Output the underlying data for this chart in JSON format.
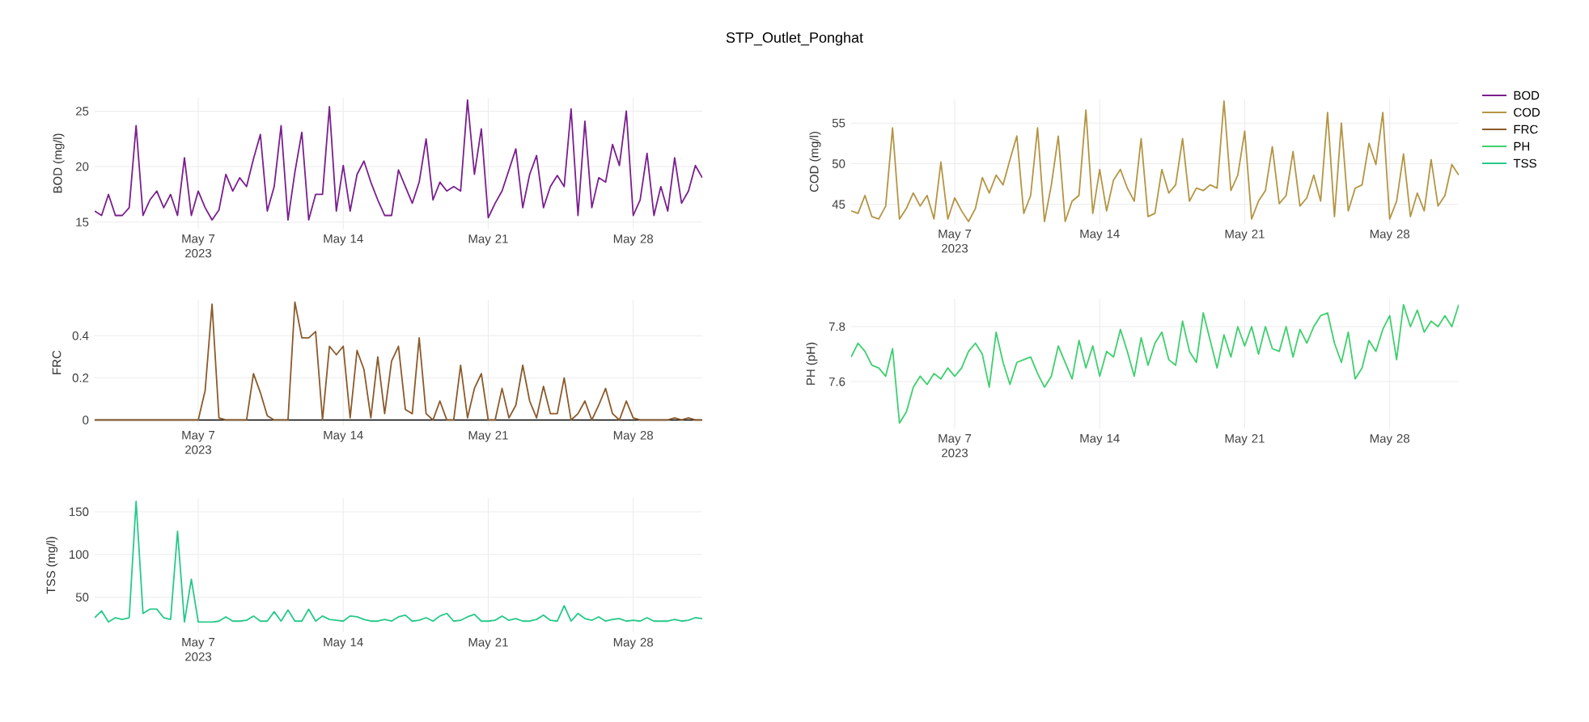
{
  "chart_data": [
    {
      "type": "line",
      "ylabel": "BOD (mg/l)",
      "grid": true,
      "legend": "top right",
      "x": [
        "2023-05-02T00:00",
        "2023-05-02T08:00",
        "2023-05-02T16:00",
        "2023-05-03T00:00",
        "2023-05-03T08:00",
        "2023-05-03T16:00",
        "2023-05-04T00:00",
        "2023-05-04T08:00",
        "2023-05-04T16:00",
        "2023-05-05T00:00",
        "2023-05-05T08:00",
        "2023-05-05T16:00",
        "2023-05-06T00:00",
        "2023-05-06T08:00",
        "2023-05-06T16:00",
        "2023-05-07T00:00",
        "2023-05-07T08:00",
        "2023-05-07T16:00",
        "2023-05-08T00:00",
        "2023-05-08T08:00",
        "2023-05-08T16:00",
        "2023-05-09T00:00",
        "2023-05-09T08:00",
        "2023-05-09T16:00",
        "2023-05-10T00:00",
        "2023-05-10T08:00",
        "2023-05-10T16:00",
        "2023-05-11T00:00",
        "2023-05-11T08:00",
        "2023-05-11T16:00",
        "2023-05-12T00:00",
        "2023-05-12T08:00",
        "2023-05-12T16:00",
        "2023-05-13T00:00",
        "2023-05-13T08:00",
        "2023-05-13T16:00",
        "2023-05-14T00:00",
        "2023-05-14T08:00",
        "2023-05-14T16:00",
        "2023-05-15T00:00",
        "2023-05-15T08:00",
        "2023-05-15T16:00",
        "2023-05-16T00:00",
        "2023-05-16T08:00",
        "2023-05-16T16:00",
        "2023-05-17T00:00",
        "2023-05-17T08:00",
        "2023-05-17T16:00",
        "2023-05-18T00:00",
        "2023-05-18T08:00",
        "2023-05-18T16:00",
        "2023-05-19T00:00",
        "2023-05-19T08:00",
        "2023-05-19T16:00",
        "2023-05-20T00:00",
        "2023-05-20T08:00",
        "2023-05-20T16:00",
        "2023-05-21T00:00",
        "2023-05-21T08:00",
        "2023-05-21T16:00",
        "2023-05-22T00:00",
        "2023-05-22T08:00",
        "2023-05-22T16:00",
        "2023-05-23T00:00",
        "2023-05-23T08:00",
        "2023-05-23T16:00",
        "2023-05-24T00:00",
        "2023-05-24T08:00",
        "2023-05-24T16:00",
        "2023-05-25T00:00",
        "2023-05-25T08:00",
        "2023-05-25T16:00",
        "2023-05-26T00:00",
        "2023-05-26T08:00",
        "2023-05-26T16:00",
        "2023-05-27T00:00",
        "2023-05-27T08:00",
        "2023-05-27T16:00",
        "2023-05-28T00:00",
        "2023-05-28T08:00",
        "2023-05-28T16:00",
        "2023-05-29T00:00",
        "2023-05-29T08:00",
        "2023-05-29T16:00",
        "2023-05-30T00:00",
        "2023-05-30T08:00",
        "2023-05-30T16:00",
        "2023-05-31T00:00",
        "2023-05-31T08:00"
      ],
      "xlim": [
        "2023-05-02",
        "2023-05-31T08:00"
      ],
      "xticks": [
        {
          "value": "2023-05-07",
          "label": "May 7 2023"
        },
        {
          "value": "2023-05-14",
          "label": "May 14"
        },
        {
          "value": "2023-05-21",
          "label": "May 21"
        },
        {
          "value": "2023-05-28",
          "label": "May 28"
        }
      ],
      "ylim": [
        14.4,
        26.2
      ],
      "yticks": [
        15,
        20,
        25
      ],
      "series": [
        {
          "name": "BOD",
          "color": "#7a1f8e",
          "values": [
            16,
            15.6,
            17.5,
            15.6,
            15.6,
            16.3,
            23.7,
            15.6,
            17,
            17.8,
            16.3,
            17.5,
            15.6,
            20.8,
            15.6,
            17.8,
            16.3,
            15.2,
            16.1,
            19.3,
            17.8,
            19,
            18.2,
            20.7,
            22.9,
            16,
            18.2,
            23.7,
            15.2,
            19.5,
            23.1,
            15.2,
            17.5,
            17.5,
            25.4,
            16,
            20.1,
            16,
            19.3,
            20.5,
            18.6,
            17,
            15.6,
            15.6,
            19.7,
            18.2,
            16.7,
            18.6,
            22.5,
            17,
            18.6,
            17.8,
            18.2,
            17.8,
            26,
            19.3,
            23.4,
            15.4,
            16.7,
            17.8,
            19.7,
            21.6,
            16.3,
            19.3,
            21,
            16.3,
            18.2,
            19.2,
            18.2,
            25.2,
            15.6,
            24.1,
            16.3,
            19,
            18.6,
            22,
            20.1,
            25,
            15.6,
            17,
            21.2,
            15.6,
            18.2,
            16,
            20.8,
            16.7,
            17.8,
            20.1,
            19
          ]
        }
      ]
    },
    {
      "type": "line",
      "title": "STP_Outlet_Ponghat",
      "ylabel": "COD (mg/l)",
      "grid": true,
      "legend": "top right",
      "x": [
        "2023-05-02T00:00",
        "2023-05-02T08:00",
        "2023-05-02T16:00",
        "2023-05-03T00:00",
        "2023-05-03T08:00",
        "2023-05-03T16:00",
        "2023-05-04T00:00",
        "2023-05-04T08:00",
        "2023-05-04T16:00",
        "2023-05-05T00:00",
        "2023-05-05T08:00",
        "2023-05-05T16:00",
        "2023-05-06T00:00",
        "2023-05-06T08:00",
        "2023-05-06T16:00",
        "2023-05-07T00:00",
        "2023-05-07T08:00",
        "2023-05-07T16:00",
        "2023-05-08T00:00",
        "2023-05-08T08:00",
        "2023-05-08T16:00",
        "2023-05-09T00:00",
        "2023-05-09T08:00",
        "2023-05-09T16:00",
        "2023-05-10T00:00",
        "2023-05-10T08:00",
        "2023-05-10T16:00",
        "2023-05-11T00:00",
        "2023-05-11T08:00",
        "2023-05-11T16:00",
        "2023-05-12T00:00",
        "2023-05-12T08:00",
        "2023-05-12T16:00",
        "2023-05-13T00:00",
        "2023-05-13T08:00",
        "2023-05-13T16:00",
        "2023-05-14T00:00",
        "2023-05-14T08:00",
        "2023-05-14T16:00",
        "2023-05-15T00:00",
        "2023-05-15T08:00",
        "2023-05-15T16:00",
        "2023-05-16T00:00",
        "2023-05-16T08:00",
        "2023-05-16T16:00",
        "2023-05-17T00:00",
        "2023-05-17T08:00",
        "2023-05-17T16:00",
        "2023-05-18T00:00",
        "2023-05-18T08:00",
        "2023-05-18T16:00",
        "2023-05-19T00:00",
        "2023-05-19T08:00",
        "2023-05-19T16:00",
        "2023-05-20T00:00",
        "2023-05-20T08:00",
        "2023-05-20T16:00",
        "2023-05-21T00:00",
        "2023-05-21T08:00",
        "2023-05-21T16:00",
        "2023-05-22T00:00",
        "2023-05-22T08:00",
        "2023-05-22T16:00",
        "2023-05-23T00:00",
        "2023-05-23T08:00",
        "2023-05-23T16:00",
        "2023-05-24T00:00",
        "2023-05-24T08:00",
        "2023-05-24T16:00",
        "2023-05-25T00:00",
        "2023-05-25T08:00",
        "2023-05-25T16:00",
        "2023-05-26T00:00",
        "2023-05-26T08:00",
        "2023-05-26T16:00",
        "2023-05-27T00:00",
        "2023-05-27T08:00",
        "2023-05-27T16:00",
        "2023-05-28T00:00",
        "2023-05-28T08:00",
        "2023-05-28T16:00",
        "2023-05-29T00:00",
        "2023-05-29T08:00",
        "2023-05-29T16:00",
        "2023-05-30T00:00",
        "2023-05-30T08:00",
        "2023-05-30T16:00",
        "2023-05-31T00:00",
        "2023-05-31T08:00"
      ],
      "xlim": [
        "2023-05-02",
        "2023-05-31T08:00"
      ],
      "xticks": [
        {
          "value": "2023-05-07",
          "label": "May 7 2023"
        },
        {
          "value": "2023-05-14",
          "label": "May 14"
        },
        {
          "value": "2023-05-21",
          "label": "May 21"
        },
        {
          "value": "2023-05-28",
          "label": "May 28"
        }
      ],
      "ylim": [
        42.6,
        57.9
      ],
      "yticks": [
        45,
        50,
        55
      ],
      "series": [
        {
          "name": "COD",
          "color": "#b39543",
          "values": [
            44.2,
            43.9,
            46.1,
            43.5,
            43.2,
            44.8,
            54.4,
            43.2,
            44.5,
            46.4,
            44.8,
            46.1,
            43.2,
            50.2,
            43.2,
            45.8,
            44.2,
            42.9,
            44.5,
            48.3,
            46.4,
            48.6,
            47.4,
            50.5,
            53.4,
            43.9,
            46.1,
            54.4,
            42.9,
            47.4,
            53.4,
            42.9,
            45.4,
            46.1,
            56.6,
            43.9,
            49.3,
            44.2,
            48,
            49.3,
            47,
            45.4,
            53.1,
            43.5,
            43.9,
            49.3,
            46.4,
            47.4,
            53.1,
            45.4,
            47,
            46.7,
            47.4,
            47,
            57.7,
            46.7,
            48.6,
            54,
            43.2,
            45.4,
            46.7,
            52.1,
            45.1,
            46.1,
            51.5,
            44.8,
            45.8,
            48.6,
            45.4,
            56.3,
            43.5,
            55,
            44.2,
            47,
            47.4,
            52.5,
            49.9,
            56.3,
            43.2,
            45.4,
            51.2,
            43.5,
            46.4,
            44.2,
            50.5,
            44.8,
            46.1,
            49.9,
            48.6
          ]
        }
      ]
    },
    {
      "type": "line",
      "ylabel": "FRC",
      "grid": true,
      "legend": "top right",
      "x": [
        "2023-05-02T00:00",
        "2023-05-02T08:00",
        "2023-05-02T16:00",
        "2023-05-03T00:00",
        "2023-05-03T08:00",
        "2023-05-03T16:00",
        "2023-05-04T00:00",
        "2023-05-04T08:00",
        "2023-05-04T16:00",
        "2023-05-05T00:00",
        "2023-05-05T08:00",
        "2023-05-05T16:00",
        "2023-05-06T00:00",
        "2023-05-06T08:00",
        "2023-05-06T16:00",
        "2023-05-07T00:00",
        "2023-05-07T08:00",
        "2023-05-07T16:00",
        "2023-05-08T00:00",
        "2023-05-08T08:00",
        "2023-05-08T16:00",
        "2023-05-09T00:00",
        "2023-05-09T08:00",
        "2023-05-09T16:00",
        "2023-05-10T00:00",
        "2023-05-10T08:00",
        "2023-05-10T16:00",
        "2023-05-11T00:00",
        "2023-05-11T08:00",
        "2023-05-11T16:00",
        "2023-05-12T00:00",
        "2023-05-12T08:00",
        "2023-05-12T16:00",
        "2023-05-13T00:00",
        "2023-05-13T08:00",
        "2023-05-13T16:00",
        "2023-05-14T00:00",
        "2023-05-14T08:00",
        "2023-05-14T16:00",
        "2023-05-15T00:00",
        "2023-05-15T08:00",
        "2023-05-15T16:00",
        "2023-05-16T00:00",
        "2023-05-16T08:00",
        "2023-05-16T16:00",
        "2023-05-17T00:00",
        "2023-05-17T08:00",
        "2023-05-17T16:00",
        "2023-05-18T00:00",
        "2023-05-18T08:00",
        "2023-05-18T16:00",
        "2023-05-19T00:00",
        "2023-05-19T08:00",
        "2023-05-19T16:00",
        "2023-05-20T00:00",
        "2023-05-20T08:00",
        "2023-05-20T16:00",
        "2023-05-21T00:00",
        "2023-05-21T08:00",
        "2023-05-21T16:00",
        "2023-05-22T00:00",
        "2023-05-22T08:00",
        "2023-05-22T16:00",
        "2023-05-23T00:00",
        "2023-05-23T08:00",
        "2023-05-23T16:00",
        "2023-05-24T00:00",
        "2023-05-24T08:00",
        "2023-05-24T16:00",
        "2023-05-25T00:00",
        "2023-05-25T08:00",
        "2023-05-25T16:00",
        "2023-05-26T00:00",
        "2023-05-26T08:00",
        "2023-05-26T16:00",
        "2023-05-27T00:00",
        "2023-05-27T08:00",
        "2023-05-27T16:00",
        "2023-05-28T00:00",
        "2023-05-28T08:00",
        "2023-05-28T16:00",
        "2023-05-29T00:00",
        "2023-05-29T08:00",
        "2023-05-29T16:00",
        "2023-05-30T00:00",
        "2023-05-30T08:00",
        "2023-05-30T16:00",
        "2023-05-31T00:00",
        "2023-05-31T08:00"
      ],
      "xlim": [
        "2023-05-02",
        "2023-05-31T08:00"
      ],
      "xticks": [
        {
          "value": "2023-05-07",
          "label": "May 7 2023"
        },
        {
          "value": "2023-05-14",
          "label": "May 14"
        },
        {
          "value": "2023-05-21",
          "label": "May 21"
        },
        {
          "value": "2023-05-28",
          "label": "May 28"
        }
      ],
      "ylim": [
        -0.025,
        0.57
      ],
      "yticks": [
        0,
        0.2,
        0.4
      ],
      "series": [
        {
          "name": "FRC",
          "color": "#8b5a2b",
          "values": [
            0,
            0,
            0,
            0,
            0,
            0,
            0,
            0,
            0,
            0,
            0,
            0,
            0,
            0,
            0,
            0,
            0.14,
            0.55,
            0.01,
            0,
            0,
            0,
            0,
            0.22,
            0.13,
            0.02,
            0,
            0,
            0,
            0.56,
            0.39,
            0.39,
            0.42,
            0,
            0.35,
            0.31,
            0.35,
            0.01,
            0.33,
            0.24,
            0.01,
            0.3,
            0.03,
            0.28,
            0.35,
            0.05,
            0.03,
            0.39,
            0.03,
            0,
            0.09,
            0,
            0,
            0.26,
            0.01,
            0.15,
            0.22,
            0,
            0,
            0.15,
            0.01,
            0.07,
            0.26,
            0.09,
            0.01,
            0.16,
            0.03,
            0.03,
            0.2,
            0,
            0.03,
            0.09,
            0,
            0.07,
            0.15,
            0.03,
            0,
            0.09,
            0.01,
            0,
            0,
            0,
            0,
            0,
            0.01,
            0,
            0.01,
            0,
            0
          ]
        }
      ]
    },
    {
      "type": "line",
      "ylabel": "PH (pH)",
      "grid": true,
      "legend": "top right",
      "x": [
        "2023-05-02T00:00",
        "2023-05-02T08:00",
        "2023-05-02T16:00",
        "2023-05-03T00:00",
        "2023-05-03T08:00",
        "2023-05-03T16:00",
        "2023-05-04T00:00",
        "2023-05-04T08:00",
        "2023-05-04T16:00",
        "2023-05-05T00:00",
        "2023-05-05T08:00",
        "2023-05-05T16:00",
        "2023-05-06T00:00",
        "2023-05-06T08:00",
        "2023-05-06T16:00",
        "2023-05-07T00:00",
        "2023-05-07T08:00",
        "2023-05-07T16:00",
        "2023-05-08T00:00",
        "2023-05-08T08:00",
        "2023-05-08T16:00",
        "2023-05-09T00:00",
        "2023-05-09T08:00",
        "2023-05-09T16:00",
        "2023-05-10T00:00",
        "2023-05-10T08:00",
        "2023-05-10T16:00",
        "2023-05-11T00:00",
        "2023-05-11T08:00",
        "2023-05-11T16:00",
        "2023-05-12T00:00",
        "2023-05-12T08:00",
        "2023-05-12T16:00",
        "2023-05-13T00:00",
        "2023-05-13T08:00",
        "2023-05-13T16:00",
        "2023-05-14T00:00",
        "2023-05-14T08:00",
        "2023-05-14T16:00",
        "2023-05-15T00:00",
        "2023-05-15T08:00",
        "2023-05-15T16:00",
        "2023-05-16T00:00",
        "2023-05-16T08:00",
        "2023-05-16T16:00",
        "2023-05-17T00:00",
        "2023-05-17T08:00",
        "2023-05-17T16:00",
        "2023-05-18T00:00",
        "2023-05-18T08:00",
        "2023-05-18T16:00",
        "2023-05-19T00:00",
        "2023-05-19T08:00",
        "2023-05-19T16:00",
        "2023-05-20T00:00",
        "2023-05-20T08:00",
        "2023-05-20T16:00",
        "2023-05-21T00:00",
        "2023-05-21T08:00",
        "2023-05-21T16:00",
        "2023-05-22T00:00",
        "2023-05-22T08:00",
        "2023-05-22T16:00",
        "2023-05-23T00:00",
        "2023-05-23T08:00",
        "2023-05-23T16:00",
        "2023-05-24T00:00",
        "2023-05-24T08:00",
        "2023-05-24T16:00",
        "2023-05-25T00:00",
        "2023-05-25T08:00",
        "2023-05-25T16:00",
        "2023-05-26T00:00",
        "2023-05-26T08:00",
        "2023-05-26T16:00",
        "2023-05-27T00:00",
        "2023-05-27T08:00",
        "2023-05-27T16:00",
        "2023-05-28T00:00",
        "2023-05-28T08:00",
        "2023-05-28T16:00",
        "2023-05-29T00:00",
        "2023-05-29T08:00",
        "2023-05-29T16:00",
        "2023-05-30T00:00",
        "2023-05-30T08:00",
        "2023-05-30T16:00",
        "2023-05-31T00:00",
        "2023-05-31T08:00"
      ],
      "xlim": [
        "2023-05-02",
        "2023-05-31T08:00"
      ],
      "xticks": [
        {
          "value": "2023-05-07",
          "label": "May 7 2023"
        },
        {
          "value": "2023-05-14",
          "label": "May 14"
        },
        {
          "value": "2023-05-21",
          "label": "May 21"
        },
        {
          "value": "2023-05-28",
          "label": "May 28"
        }
      ],
      "ylim": [
        7.43,
        7.9
      ],
      "yticks": [
        7.6,
        7.8
      ],
      "series": [
        {
          "name": "PH",
          "color": "#3ecf6e",
          "values": [
            7.69,
            7.74,
            7.71,
            7.66,
            7.65,
            7.62,
            7.72,
            7.45,
            7.49,
            7.58,
            7.62,
            7.59,
            7.63,
            7.61,
            7.65,
            7.62,
            7.65,
            7.71,
            7.74,
            7.7,
            7.58,
            7.78,
            7.67,
            7.59,
            7.67,
            7.68,
            7.69,
            7.63,
            7.58,
            7.62,
            7.73,
            7.67,
            7.61,
            7.75,
            7.65,
            7.73,
            7.62,
            7.71,
            7.69,
            7.79,
            7.71,
            7.62,
            7.76,
            7.66,
            7.74,
            7.78,
            7.68,
            7.66,
            7.82,
            7.71,
            7.67,
            7.85,
            7.75,
            7.65,
            7.77,
            7.69,
            7.8,
            7.73,
            7.8,
            7.7,
            7.8,
            7.72,
            7.71,
            7.8,
            7.69,
            7.79,
            7.74,
            7.8,
            7.84,
            7.85,
            7.74,
            7.67,
            7.78,
            7.61,
            7.65,
            7.75,
            7.71,
            7.79,
            7.84,
            7.68,
            7.88,
            7.8,
            7.86,
            7.78,
            7.82,
            7.8,
            7.84,
            7.8,
            7.88
          ]
        }
      ]
    },
    {
      "type": "line",
      "ylabel": "TSS (mg/l)",
      "grid": true,
      "legend": "top right",
      "x": [
        "2023-05-02T00:00",
        "2023-05-02T08:00",
        "2023-05-02T16:00",
        "2023-05-03T00:00",
        "2023-05-03T08:00",
        "2023-05-03T16:00",
        "2023-05-04T00:00",
        "2023-05-04T08:00",
        "2023-05-04T16:00",
        "2023-05-05T00:00",
        "2023-05-05T08:00",
        "2023-05-05T16:00",
        "2023-05-06T00:00",
        "2023-05-06T08:00",
        "2023-05-06T16:00",
        "2023-05-07T00:00",
        "2023-05-07T08:00",
        "2023-05-07T16:00",
        "2023-05-08T00:00",
        "2023-05-08T08:00",
        "2023-05-08T16:00",
        "2023-05-09T00:00",
        "2023-05-09T08:00",
        "2023-05-09T16:00",
        "2023-05-10T00:00",
        "2023-05-10T08:00",
        "2023-05-10T16:00",
        "2023-05-11T00:00",
        "2023-05-11T08:00",
        "2023-05-11T16:00",
        "2023-05-12T00:00",
        "2023-05-12T08:00",
        "2023-05-12T16:00",
        "2023-05-13T00:00",
        "2023-05-13T08:00",
        "2023-05-13T16:00",
        "2023-05-14T00:00",
        "2023-05-14T08:00",
        "2023-05-14T16:00",
        "2023-05-15T00:00",
        "2023-05-15T08:00",
        "2023-05-15T16:00",
        "2023-05-16T00:00",
        "2023-05-16T08:00",
        "2023-05-16T16:00",
        "2023-05-17T00:00",
        "2023-05-17T08:00",
        "2023-05-17T16:00",
        "2023-05-18T00:00",
        "2023-05-18T08:00",
        "2023-05-18T16:00",
        "2023-05-19T00:00",
        "2023-05-19T08:00",
        "2023-05-19T16:00",
        "2023-05-20T00:00",
        "2023-05-20T08:00",
        "2023-05-20T16:00",
        "2023-05-21T00:00",
        "2023-05-21T08:00",
        "2023-05-21T16:00",
        "2023-05-22T00:00",
        "2023-05-22T08:00",
        "2023-05-22T16:00",
        "2023-05-23T00:00",
        "2023-05-23T08:00",
        "2023-05-23T16:00",
        "2023-05-24T00:00",
        "2023-05-24T08:00",
        "2023-05-24T16:00",
        "2023-05-25T00:00",
        "2023-05-25T08:00",
        "2023-05-25T16:00",
        "2023-05-26T00:00",
        "2023-05-26T08:00",
        "2023-05-26T16:00",
        "2023-05-27T00:00",
        "2023-05-27T08:00",
        "2023-05-27T16:00",
        "2023-05-28T00:00",
        "2023-05-28T08:00",
        "2023-05-28T16:00",
        "2023-05-29T00:00",
        "2023-05-29T08:00",
        "2023-05-29T16:00",
        "2023-05-30T00:00",
        "2023-05-30T08:00",
        "2023-05-30T16:00",
        "2023-05-31T00:00",
        "2023-05-31T08:00"
      ],
      "xlim": [
        "2023-05-02",
        "2023-05-31T08:00"
      ],
      "xticks": [
        {
          "value": "2023-05-07",
          "label": "May 7 2023"
        },
        {
          "value": "2023-05-14",
          "label": "May 14"
        },
        {
          "value": "2023-05-21",
          "label": "May 21"
        },
        {
          "value": "2023-05-28",
          "label": "May 28"
        }
      ],
      "ylim": [
        9,
        166
      ],
      "yticks": [
        50,
        100,
        150
      ],
      "series": [
        {
          "name": "TSS",
          "color": "#26c98a",
          "values": [
            26,
            34,
            21,
            26,
            24,
            26,
            162,
            31,
            36,
            36,
            26,
            24,
            127,
            21,
            71,
            21,
            21,
            21,
            22,
            27,
            22,
            22,
            23,
            28,
            22,
            22,
            33,
            22,
            35,
            22,
            22,
            36,
            22,
            28,
            24,
            23,
            22,
            28,
            27,
            24,
            22,
            22,
            24,
            22,
            27,
            29,
            22,
            23,
            26,
            22,
            28,
            31,
            22,
            23,
            27,
            30,
            22,
            22,
            23,
            28,
            23,
            25,
            22,
            22,
            24,
            29,
            23,
            22,
            40,
            22,
            31,
            25,
            23,
            27,
            22,
            24,
            25,
            22,
            23,
            22,
            26,
            22,
            22,
            22,
            24,
            22,
            23,
            26,
            25
          ]
        }
      ]
    }
  ]
}
